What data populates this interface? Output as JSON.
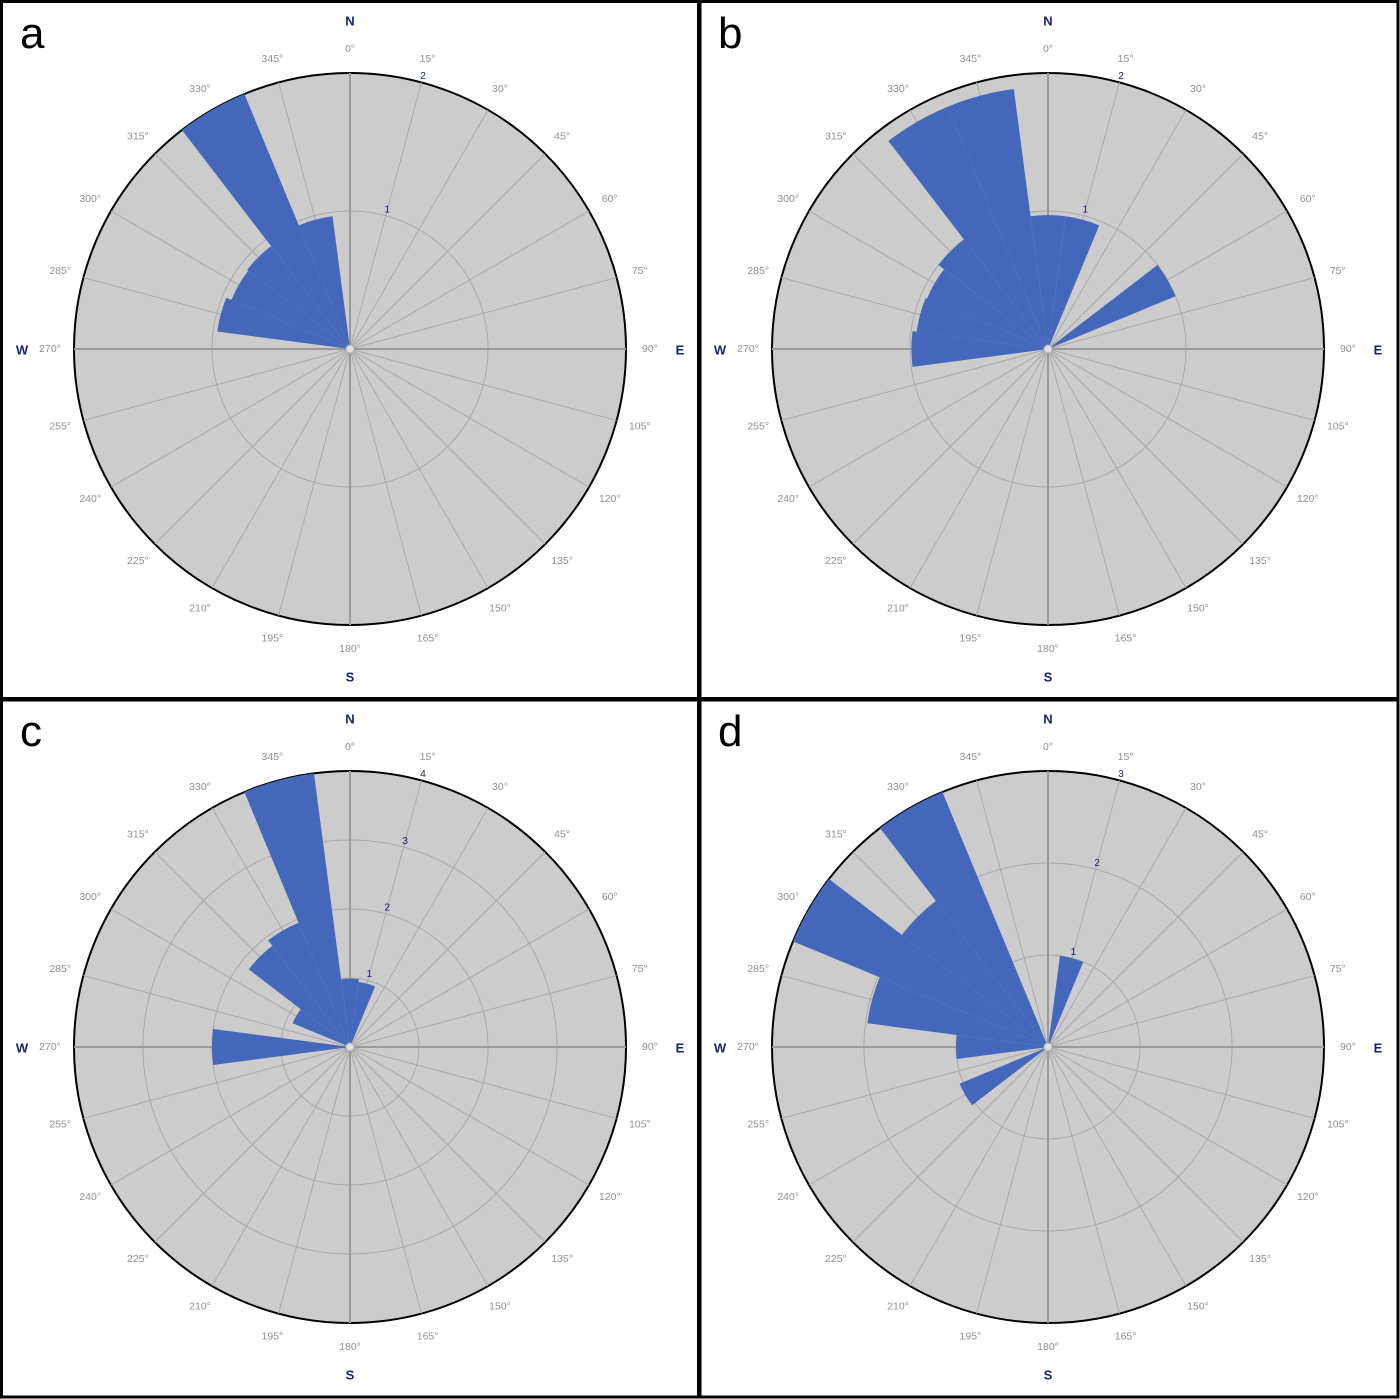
{
  "chart_data": [
    {
      "type": "rose",
      "panel_label": "a",
      "bin_width_deg": 15,
      "radial_max": 2,
      "radial_ticks": [
        1,
        2
      ],
      "petals": [
        {
          "direction": 285,
          "value": 0.97
        },
        {
          "direction": 300,
          "value": 0.93
        },
        {
          "direction": 315,
          "value": 0.94
        },
        {
          "direction": 330,
          "value": 2.0
        },
        {
          "direction": 345,
          "value": 0.97
        }
      ]
    },
    {
      "type": "rose",
      "panel_label": "b",
      "bin_width_deg": 15,
      "radial_max": 2,
      "radial_ticks": [
        1,
        2
      ],
      "petals": [
        {
          "direction": 0,
          "value": 0.97
        },
        {
          "direction": 15,
          "value": 0.97
        },
        {
          "direction": 60,
          "value": 1.0
        },
        {
          "direction": 270,
          "value": 0.99
        },
        {
          "direction": 285,
          "value": 0.96
        },
        {
          "direction": 300,
          "value": 0.95
        },
        {
          "direction": 315,
          "value": 1.0
        },
        {
          "direction": 330,
          "value": 1.9
        },
        {
          "direction": 345,
          "value": 1.9
        }
      ]
    },
    {
      "type": "rose",
      "panel_label": "c",
      "bin_width_deg": 15,
      "radial_max": 4,
      "radial_ticks": [
        1,
        2,
        3,
        4
      ],
      "petals": [
        {
          "direction": 0,
          "value": 0.99
        },
        {
          "direction": 15,
          "value": 0.95
        },
        {
          "direction": 270,
          "value": 2.0
        },
        {
          "direction": 300,
          "value": 0.9
        },
        {
          "direction": 315,
          "value": 1.85
        },
        {
          "direction": 330,
          "value": 1.95
        },
        {
          "direction": 345,
          "value": 4.0
        }
      ]
    },
    {
      "type": "rose",
      "panel_label": "d",
      "bin_width_deg": 15,
      "radial_max": 3,
      "radial_ticks": [
        1,
        2,
        3
      ],
      "petals": [
        {
          "direction": 15,
          "value": 1.0
        },
        {
          "direction": 240,
          "value": 1.04
        },
        {
          "direction": 270,
          "value": 1.0
        },
        {
          "direction": 285,
          "value": 1.98
        },
        {
          "direction": 300,
          "value": 3.0
        },
        {
          "direction": 315,
          "value": 2.0
        },
        {
          "direction": 330,
          "value": 3.0
        }
      ]
    }
  ],
  "degree_labels": [
    "0°",
    "15°",
    "30°",
    "45°",
    "60°",
    "75°",
    "90°",
    "105°",
    "120°",
    "135°",
    "150°",
    "165°",
    "180°",
    "195°",
    "210°",
    "225°",
    "240°",
    "255°",
    "270°",
    "285°",
    "300°",
    "315°",
    "330°",
    "345°"
  ],
  "cardinal_labels": {
    "north": "N",
    "east": "E",
    "south": "S",
    "west": "W"
  },
  "colors": {
    "petal": "#4466bb",
    "dial": "#cccccc",
    "grid": "#a8a8a8",
    "cardinal": "#1a2370",
    "degree": "#909090"
  }
}
